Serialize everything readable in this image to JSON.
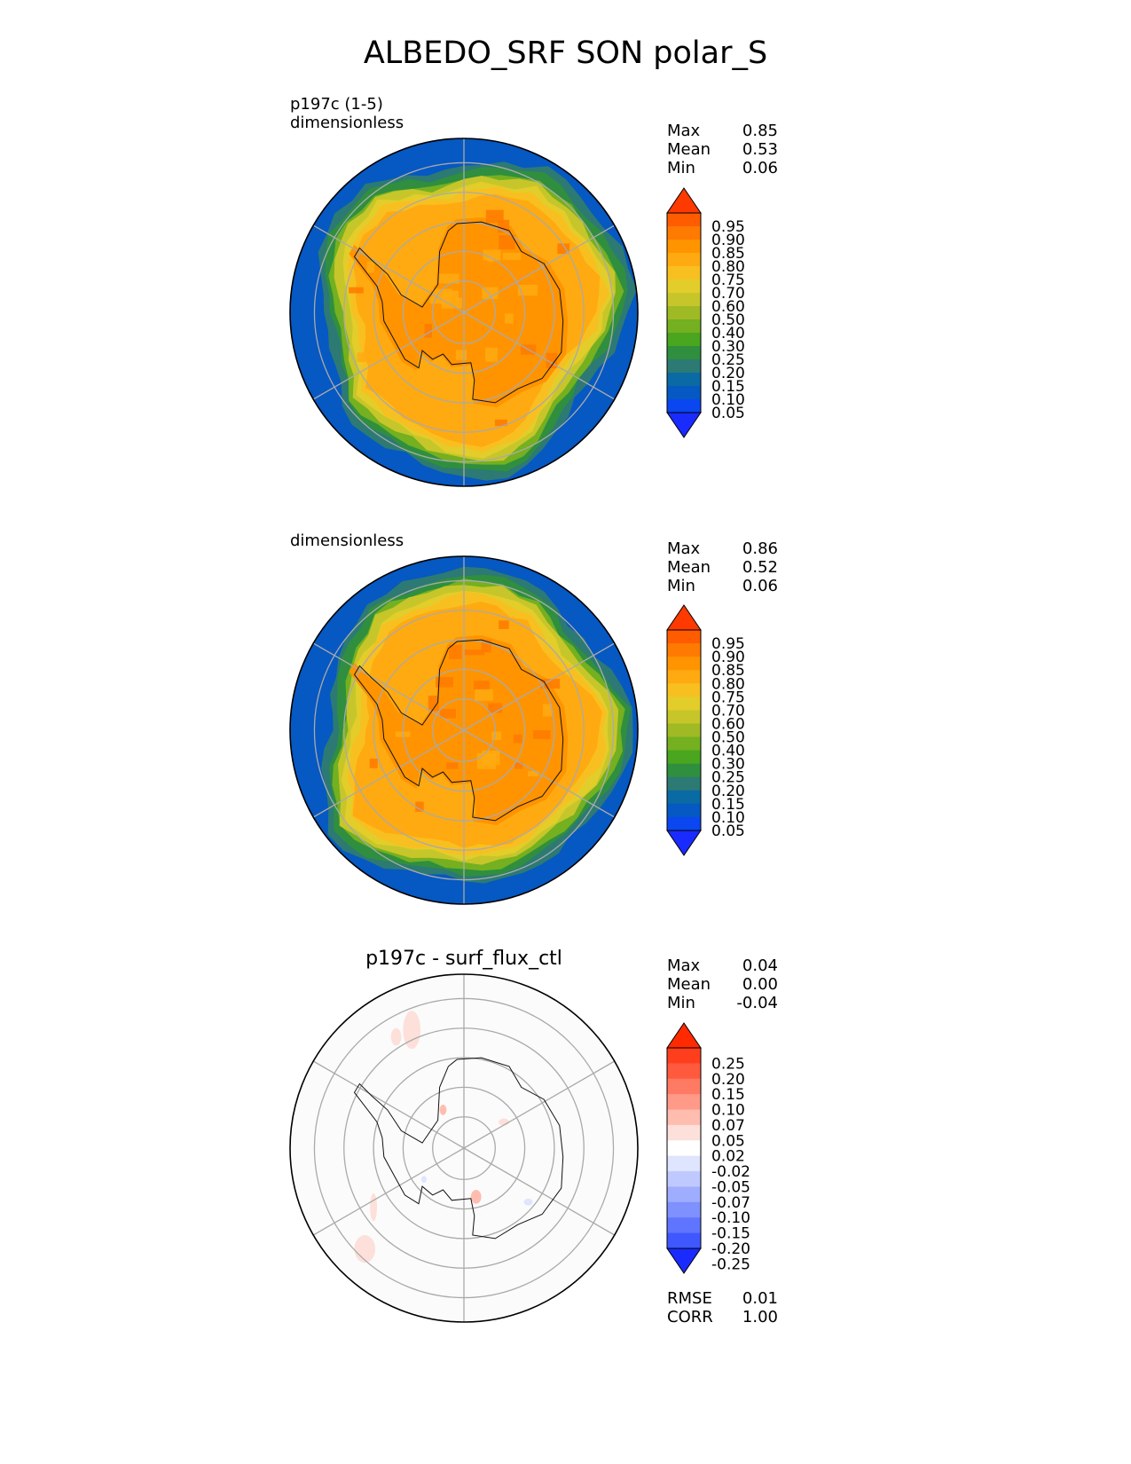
{
  "figure": {
    "title": "ALBEDO_SRF SON polar_S"
  },
  "chart_data": [
    {
      "type": "contour",
      "projection": "south-polar-stereographic",
      "labels": [
        "p197c (1-5)",
        "dimensionless"
      ],
      "title": "",
      "stats": [
        {
          "key": "Max",
          "value": "0.85"
        },
        {
          "key": "Mean",
          "value": "0.53"
        },
        {
          "key": "Min",
          "value": "0.06"
        }
      ],
      "colorbar": {
        "ticks": [
          "0.95",
          "0.90",
          "0.85",
          "0.80",
          "0.75",
          "0.70",
          "0.60",
          "0.50",
          "0.40",
          "0.30",
          "0.25",
          "0.20",
          "0.15",
          "0.10",
          "0.05"
        ],
        "colors": [
          "#ff3a00",
          "#ff5c00",
          "#ff7a00",
          "#ff9400",
          "#ffaa10",
          "#f7c020",
          "#e3cd2a",
          "#c6c62a",
          "#9fba24",
          "#74b020",
          "#4aa51f",
          "#2f8f3f",
          "#2c7a73",
          "#0a6aa4",
          "#0658c2",
          "#0a47f0",
          "#1a2bff"
        ],
        "extend": "both"
      },
      "extras": []
    },
    {
      "type": "contour",
      "projection": "south-polar-stereographic",
      "labels": [
        "dimensionless"
      ],
      "title": "",
      "stats": [
        {
          "key": "Max",
          "value": "0.86"
        },
        {
          "key": "Mean",
          "value": "0.52"
        },
        {
          "key": "Min",
          "value": "0.06"
        }
      ],
      "colorbar": {
        "ticks": [
          "0.95",
          "0.90",
          "0.85",
          "0.80",
          "0.75",
          "0.70",
          "0.60",
          "0.50",
          "0.40",
          "0.30",
          "0.25",
          "0.20",
          "0.15",
          "0.10",
          "0.05"
        ],
        "colors": [
          "#ff3a00",
          "#ff5c00",
          "#ff7a00",
          "#ff9400",
          "#ffaa10",
          "#f7c020",
          "#e3cd2a",
          "#c6c62a",
          "#9fba24",
          "#74b020",
          "#4aa51f",
          "#2f8f3f",
          "#2c7a73",
          "#0a6aa4",
          "#0658c2",
          "#0a47f0",
          "#1a2bff"
        ],
        "extend": "both"
      },
      "extras": []
    },
    {
      "type": "contour",
      "projection": "south-polar-stereographic",
      "labels": [],
      "title": "p197c - surf_flux_ctl",
      "stats": [
        {
          "key": "Max",
          "value": "0.04"
        },
        {
          "key": "Mean",
          "value": "0.00"
        },
        {
          "key": "Min",
          "value": "-0.04"
        }
      ],
      "colorbar": {
        "ticks": [
          "0.25",
          "0.20",
          "0.15",
          "0.10",
          "0.07",
          "0.05",
          "0.02",
          "-0.02",
          "-0.05",
          "-0.07",
          "-0.10",
          "-0.15",
          "-0.20",
          "-0.25"
        ],
        "colors": [
          "#ff2a00",
          "#ff3e1e",
          "#ff5a3e",
          "#ff7a62",
          "#ff9a88",
          "#ffbdb0",
          "#fde0da",
          "#ffffff",
          "#dfe4ff",
          "#bfc9ff",
          "#9fadff",
          "#7f90ff",
          "#5f74ff",
          "#3f57ff",
          "#1a2bff"
        ],
        "extend": "both"
      },
      "extras": [
        {
          "key": "RMSE",
          "value": "0.01"
        },
        {
          "key": "CORR",
          "value": "1.00"
        }
      ]
    }
  ]
}
